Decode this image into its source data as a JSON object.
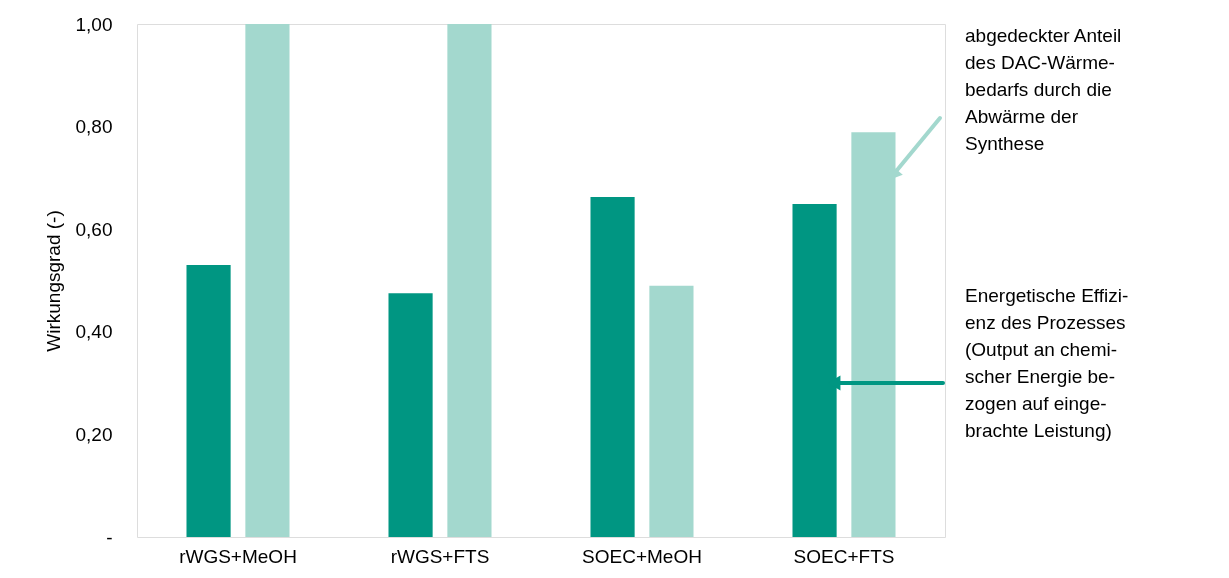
{
  "chart_data": {
    "type": "bar",
    "ylabel": "Wirkungsgrad (-)",
    "categories": [
      "rWGS+MeOH",
      "rWGS+FTS",
      "SOEC+MeOH",
      "SOEC+FTS"
    ],
    "series": [
      {
        "name": "Energetische Effizi-\nenz des Prozesses\n(Output an chemi-\nscher Energie be-\nzogen auf einge-\nbrachte Leistung)",
        "color": "#009682",
        "values": [
          0.53,
          0.475,
          0.663,
          0.649
        ]
      },
      {
        "name": "abgedeckter Anteil\ndes DAC-Wärme-\nbedarfs durch die\nAbwärme der\nSynthese",
        "color": "#a3d8ce",
        "values": [
          1.0,
          1.0,
          0.49,
          0.789
        ]
      }
    ],
    "ylim": [
      0,
      1.0
    ],
    "yticks": [
      {
        "value": 0,
        "label": "-"
      },
      {
        "value": 0.2,
        "label": "0,20"
      },
      {
        "value": 0.4,
        "label": "0,40"
      },
      {
        "value": 0.6,
        "label": "0,60"
      },
      {
        "value": 0.8,
        "label": "0,80"
      },
      {
        "value": 1.0,
        "label": "1,00"
      }
    ],
    "grid": false
  }
}
